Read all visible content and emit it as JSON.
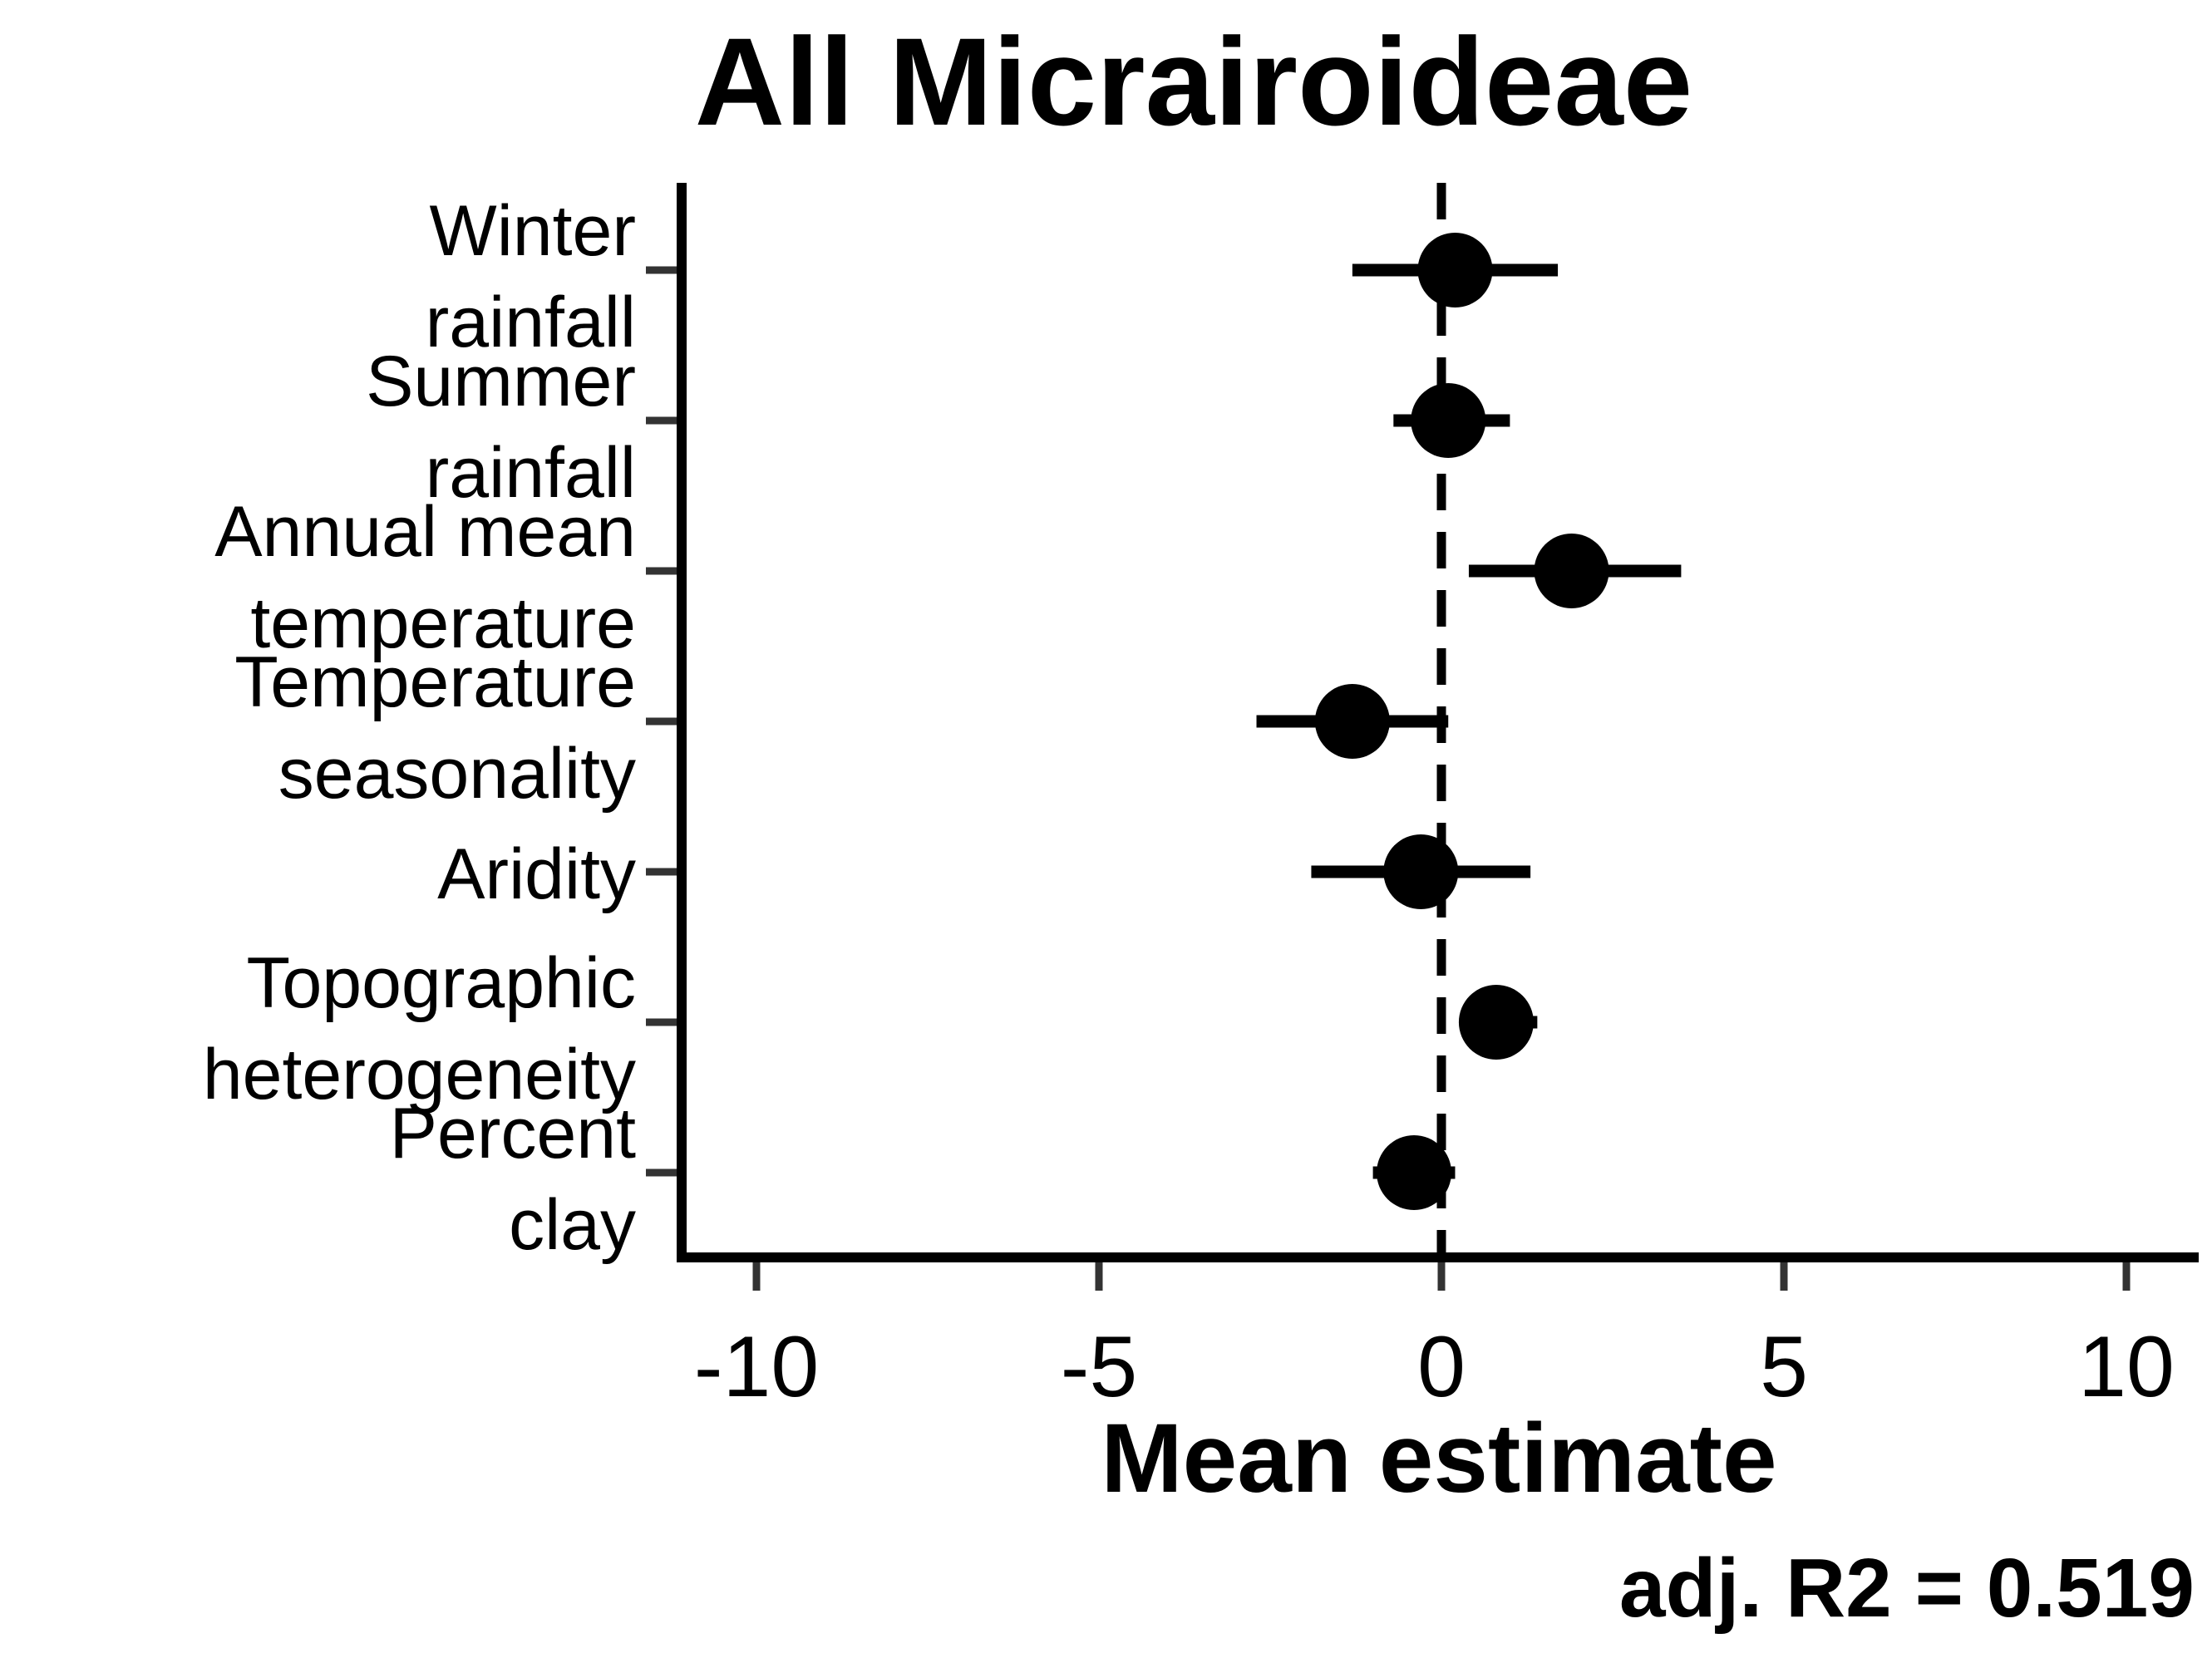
{
  "chart_data": {
    "type": "scatter",
    "subtype": "coefficient-plot",
    "title": "All Micrairoideae",
    "xlabel": "Mean estimate",
    "ylabel": "",
    "annotation": "adj. R2 = 0.519",
    "xlim": [
      -10.9,
      10.9
    ],
    "x_ticks": [
      -10,
      -5,
      0,
      5,
      10
    ],
    "x_tick_labels": [
      "-10",
      "-5",
      "0",
      "5",
      "10"
    ],
    "reference_line": {
      "x": 0,
      "style": "dashed"
    },
    "grid": false,
    "legend": "none",
    "point_color": "#000000",
    "categories": [
      {
        "lines": [
          "Winter",
          "rainfall"
        ],
        "estimate": 0.2,
        "lower": -1.3,
        "upper": 1.7
      },
      {
        "lines": [
          "Summer",
          "rainfall"
        ],
        "estimate": 0.1,
        "lower": -0.7,
        "upper": 1.0
      },
      {
        "lines": [
          "Annual mean",
          "temperature"
        ],
        "estimate": 1.9,
        "lower": 0.4,
        "upper": 3.5
      },
      {
        "lines": [
          "Temperature",
          "seasonality"
        ],
        "estimate": -1.3,
        "lower": -2.7,
        "upper": 0.1
      },
      {
        "lines": [
          "Aridity"
        ],
        "estimate": -0.3,
        "lower": -1.9,
        "upper": 1.3
      },
      {
        "lines": [
          "Topographic",
          "heterogeneity"
        ],
        "estimate": 0.8,
        "lower": 0.3,
        "upper": 1.4
      },
      {
        "lines": [
          "Percent",
          "clay"
        ],
        "estimate": -0.4,
        "lower": -1.0,
        "upper": 0.2
      }
    ]
  }
}
